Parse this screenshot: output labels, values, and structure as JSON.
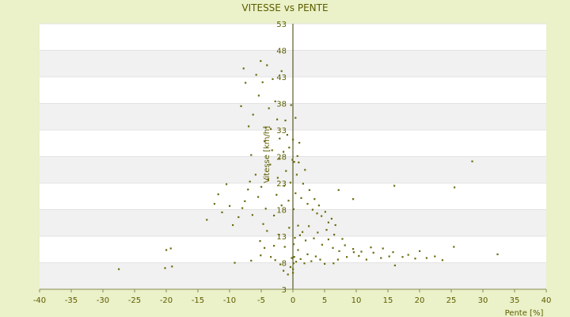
{
  "chart_data": {
    "type": "scatter",
    "title": "VITESSE vs PENTE",
    "xlabel": "Pente [%]",
    "ylabel": "Vitesse [km/h]",
    "xlim": [
      -40,
      40
    ],
    "ylim": [
      3,
      53
    ],
    "xticks": [
      -40,
      -35,
      -30,
      -25,
      -20,
      -15,
      -10,
      -5,
      0,
      5,
      10,
      15,
      20,
      25,
      30,
      35,
      40
    ],
    "yticks": [
      3,
      8,
      13,
      18,
      23,
      28,
      33,
      38,
      43,
      48,
      53
    ],
    "yticks_display": [
      "3",
      "8",
      "13",
      "18",
      "23",
      "28",
      "33",
      "38",
      "43",
      "48",
      "53"
    ],
    "grid": "horizontal alternating bands",
    "colors": {
      "background": "#ebf1c8",
      "plot": "#ffffff",
      "band": "#f1f1f1",
      "marker": "#6b6b10",
      "text": "#5c5c00",
      "axis": "#3a3a00"
    },
    "series": [
      {
        "name": "",
        "points": [
          [
            -27.5,
            6.8
          ],
          [
            -20.2,
            7.0
          ],
          [
            -19.1,
            7.3
          ],
          [
            -20.0,
            10.4
          ],
          [
            -19.3,
            10.7
          ],
          [
            -9.2,
            8.0
          ],
          [
            -6.6,
            8.4
          ],
          [
            -5.1,
            9.4
          ],
          [
            -4.5,
            10.8
          ],
          [
            -3.5,
            9.1
          ],
          [
            -2.8,
            8.5
          ],
          [
            -2.0,
            7.7
          ],
          [
            -1.5,
            6.5
          ],
          [
            -0.8,
            5.8
          ],
          [
            -0.4,
            7.2
          ],
          [
            -0.2,
            8.9
          ],
          [
            0.0,
            6.1
          ],
          [
            0.0,
            6.8
          ],
          [
            0.1,
            7.9
          ],
          [
            0.2,
            9.1
          ],
          [
            0.5,
            8.2
          ],
          [
            0.8,
            10.4
          ],
          [
            1.2,
            8.7
          ],
          [
            1.8,
            7.9
          ],
          [
            2.3,
            9.6
          ],
          [
            2.9,
            8.3
          ],
          [
            3.6,
            9.2
          ],
          [
            4.3,
            8.6
          ],
          [
            5.0,
            7.8
          ],
          [
            6.4,
            7.9
          ],
          [
            7.1,
            8.6
          ],
          [
            8.5,
            9.1
          ],
          [
            9.6,
            10.0
          ],
          [
            10.4,
            9.3
          ],
          [
            11.6,
            8.6
          ],
          [
            12.7,
            9.9
          ],
          [
            13.9,
            8.9
          ],
          [
            15.2,
            9.2
          ],
          [
            16.1,
            7.5
          ],
          [
            17.3,
            9.1
          ],
          [
            18.2,
            9.5
          ],
          [
            19.3,
            8.8
          ],
          [
            21.1,
            8.9
          ],
          [
            22.4,
            9.2
          ],
          [
            23.6,
            8.5
          ],
          [
            25.4,
            11.0
          ],
          [
            32.3,
            9.6
          ],
          [
            0.3,
            12.7
          ],
          [
            1.1,
            13.2
          ],
          [
            2.0,
            12.2
          ],
          [
            3.3,
            12.6
          ],
          [
            4.6,
            11.4
          ],
          [
            5.6,
            12.4
          ],
          [
            6.3,
            10.8
          ],
          [
            7.3,
            10.2
          ],
          [
            8.2,
            11.3
          ],
          [
            9.5,
            10.6
          ],
          [
            10.8,
            10.1
          ],
          [
            12.3,
            10.9
          ],
          [
            14.2,
            10.7
          ],
          [
            15.8,
            10.0
          ],
          [
            20.0,
            10.2
          ],
          [
            -13.6,
            16.1
          ],
          [
            -12.4,
            19.1
          ],
          [
            -11.8,
            20.9
          ],
          [
            -11.2,
            17.5
          ],
          [
            -10.5,
            22.8
          ],
          [
            -10.0,
            18.7
          ],
          [
            -9.5,
            15.1
          ],
          [
            -8.6,
            16.6
          ],
          [
            -8.0,
            18.3
          ],
          [
            -7.6,
            19.6
          ],
          [
            -7.1,
            21.8
          ],
          [
            -6.8,
            23.3
          ],
          [
            -6.4,
            17.0
          ],
          [
            -5.9,
            24.6
          ],
          [
            -5.5,
            20.4
          ],
          [
            -5.0,
            22.3
          ],
          [
            -4.7,
            15.3
          ],
          [
            -4.3,
            18.2
          ],
          [
            -3.9,
            23.8
          ],
          [
            -3.6,
            26.5
          ],
          [
            -3.3,
            29.2
          ],
          [
            -3.0,
            16.9
          ],
          [
            -2.6,
            20.8
          ],
          [
            -2.4,
            24.0
          ],
          [
            -2.1,
            27.6
          ],
          [
            -1.8,
            18.8
          ],
          [
            -1.4,
            22.5
          ],
          [
            -1.1,
            25.3
          ],
          [
            -0.7,
            19.7
          ],
          [
            -0.4,
            23.1
          ],
          [
            -0.1,
            27.4
          ],
          [
            0.1,
            18.1
          ],
          [
            0.4,
            21.1
          ],
          [
            0.6,
            24.6
          ],
          [
            0.9,
            26.9
          ],
          [
            1.3,
            20.2
          ],
          [
            1.6,
            22.9
          ],
          [
            1.9,
            25.5
          ],
          [
            2.3,
            19.1
          ],
          [
            2.6,
            21.7
          ],
          [
            3.1,
            18.0
          ],
          [
            3.4,
            20.0
          ],
          [
            3.8,
            17.3
          ],
          [
            4.1,
            18.8
          ],
          [
            4.5,
            16.8
          ],
          [
            5.1,
            17.6
          ],
          [
            5.6,
            15.6
          ],
          [
            6.1,
            16.3
          ],
          [
            6.7,
            15.1
          ],
          [
            -8.2,
            37.5
          ],
          [
            -7.8,
            44.6
          ],
          [
            -7.5,
            41.9
          ],
          [
            -7.0,
            33.7
          ],
          [
            -6.6,
            28.3
          ],
          [
            -6.3,
            35.9
          ],
          [
            -5.8,
            43.4
          ],
          [
            -5.4,
            39.5
          ],
          [
            -5.1,
            46.0
          ],
          [
            -4.8,
            42.0
          ],
          [
            -4.5,
            30.9
          ],
          [
            -4.1,
            45.2
          ],
          [
            -3.8,
            37.1
          ],
          [
            -3.5,
            33.2
          ],
          [
            -3.2,
            42.6
          ],
          [
            -2.8,
            38.4
          ],
          [
            -2.5,
            35.0
          ],
          [
            -2.1,
            31.4
          ],
          [
            -1.8,
            44.1
          ],
          [
            -1.5,
            28.9
          ],
          [
            -1.2,
            34.8
          ],
          [
            -0.9,
            32.1
          ],
          [
            -0.6,
            29.7
          ],
          [
            -0.3,
            37.7
          ],
          [
            0.0,
            31.2
          ],
          [
            0.2,
            27.0
          ],
          [
            0.4,
            35.3
          ],
          [
            0.7,
            28.1
          ],
          [
            1.0,
            30.6
          ],
          [
            -5.2,
            12.1
          ],
          [
            -4.1,
            14.0
          ],
          [
            -3.0,
            11.2
          ],
          [
            -2.2,
            13.3
          ],
          [
            -1.3,
            11.0
          ],
          [
            -0.6,
            14.6
          ],
          [
            0.1,
            11.5
          ],
          [
            0.8,
            15.0
          ],
          [
            1.5,
            13.8
          ],
          [
            2.5,
            14.9
          ],
          [
            3.9,
            13.7
          ],
          [
            5.3,
            14.2
          ],
          [
            6.5,
            13.3
          ],
          [
            7.8,
            12.5
          ],
          [
            7.2,
            21.7
          ],
          [
            9.5,
            20.0
          ],
          [
            16.0,
            22.5
          ],
          [
            25.5,
            22.2
          ],
          [
            28.3,
            27.1
          ],
          [
            -4.3,
            33.4
          ]
        ]
      }
    ]
  }
}
